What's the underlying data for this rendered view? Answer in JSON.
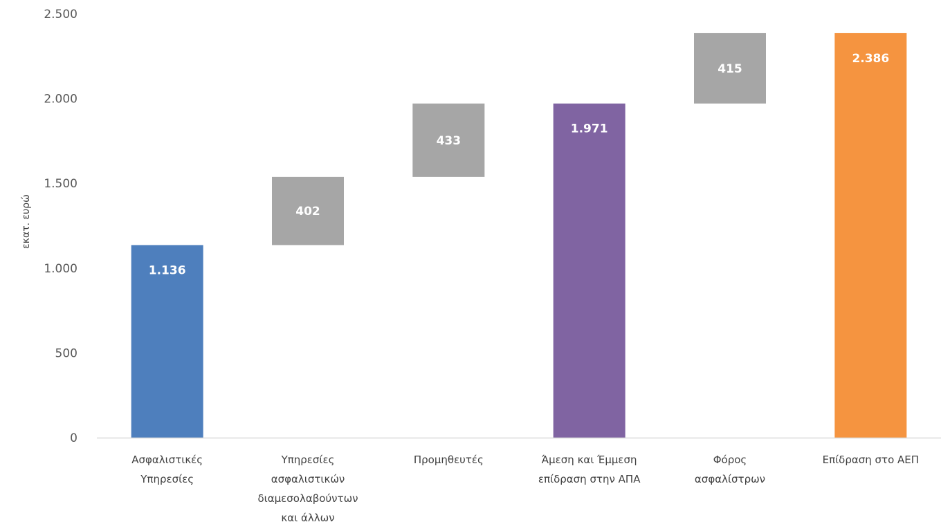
{
  "chart_data": {
    "type": "bar",
    "subtype": "waterfall",
    "categories": [
      [
        "Ασφαλιστικές",
        "Υπηρεσίες"
      ],
      [
        "Υπηρεσίες",
        "ασφαλιστικών",
        "διαμεσολαβούντων",
        "και άλλων"
      ],
      [
        "Προμηθευτές"
      ],
      [
        "Άμεση και Έμμεση",
        "επίδραση στην ΑΠΑ"
      ],
      [
        "Φόρος",
        "ασφαλίστρων"
      ],
      [
        "Επίδραση στο ΑΕΠ"
      ]
    ],
    "bars": [
      {
        "base": 0,
        "value": 1136,
        "label": "1.136",
        "kind": "total",
        "color": "#4e7fbd"
      },
      {
        "base": 1136,
        "value": 402,
        "label": "402",
        "kind": "step",
        "color": "#a6a6a6"
      },
      {
        "base": 1538,
        "value": 433,
        "label": "433",
        "kind": "step",
        "color": "#a6a6a6"
      },
      {
        "base": 0,
        "value": 1971,
        "label": "1.971",
        "kind": "total",
        "color": "#8064a2"
      },
      {
        "base": 1971,
        "value": 415,
        "label": "415",
        "kind": "step",
        "color": "#a6a6a6"
      },
      {
        "base": 0,
        "value": 2386,
        "label": "2.386",
        "kind": "total",
        "color": "#f59440"
      }
    ],
    "ylabel": "εκατ. ευρώ",
    "yticks": [
      0,
      500,
      1000,
      1500,
      2000,
      2500
    ],
    "ytick_labels": [
      "0",
      "500",
      "1.000",
      "1.500",
      "2.000",
      "2.500"
    ],
    "ylim": [
      0,
      2500
    ],
    "grid": false,
    "legend": "none",
    "axis_color": "#d9d9d9"
  }
}
